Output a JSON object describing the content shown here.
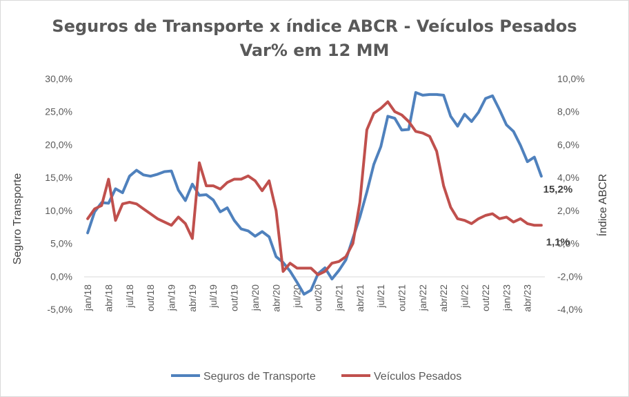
{
  "chart_data": {
    "type": "line",
    "title": "Seguros de Transporte x índice ABCR - Veículos Pesados",
    "subtitle": "Var% em 12 MM",
    "ylabel": "Seguro Transporte",
    "y2label": "Índice ABCR",
    "ylim": [
      -5,
      30
    ],
    "y2lim": [
      -4,
      10
    ],
    "y_ticks": [
      "30,0%",
      "25,0%",
      "20,0%",
      "15,0%",
      "10,0%",
      "5,0%",
      "0,0%",
      "-5,0%"
    ],
    "y2_ticks": [
      "10,0%",
      "8,0%",
      "6,0%",
      "4,0%",
      "2,0%",
      "0,0%",
      "-2,0%",
      "-4,0%"
    ],
    "x_tick_labels": [
      "jan/18",
      "abr/18",
      "jul/18",
      "out/18",
      "jan/19",
      "abr/19",
      "jul/19",
      "out/19",
      "jan/20",
      "abr/20",
      "jul/20",
      "out/20",
      "jan/21",
      "abr/21",
      "jul/21",
      "out/21",
      "jan/22",
      "abr/22",
      "jul/22",
      "out/22",
      "jan/23",
      "abr/23"
    ],
    "x": [
      "jan/18",
      "fev/18",
      "mar/18",
      "abr/18",
      "mai/18",
      "jun/18",
      "jul/18",
      "ago/18",
      "set/18",
      "out/18",
      "nov/18",
      "dez/18",
      "jan/19",
      "fev/19",
      "mar/19",
      "abr/19",
      "mai/19",
      "jun/19",
      "jul/19",
      "ago/19",
      "set/19",
      "out/19",
      "nov/19",
      "dez/19",
      "jan/20",
      "fev/20",
      "mar/20",
      "abr/20",
      "mai/20",
      "jun/20",
      "jul/20",
      "ago/20",
      "set/20",
      "out/20",
      "nov/20",
      "dez/20",
      "jan/21",
      "fev/21",
      "mar/21",
      "abr/21",
      "mai/21",
      "jun/21",
      "jul/21",
      "ago/21",
      "set/21",
      "out/21",
      "nov/21",
      "dez/21",
      "jan/22",
      "fev/22",
      "mar/22",
      "abr/22",
      "mai/22",
      "jun/22",
      "jul/22",
      "ago/22",
      "set/22",
      "out/22",
      "nov/22",
      "dez/22",
      "jan/23",
      "fev/23",
      "mar/23",
      "abr/23",
      "mai/23",
      "jun/23"
    ],
    "series": [
      {
        "name": "Seguros de Transporte",
        "axis": "left",
        "color": "#4f81bd",
        "values": [
          6.6,
          9.8,
          11.2,
          11.1,
          13.3,
          12.7,
          15.2,
          16.1,
          15.4,
          15.2,
          15.5,
          15.9,
          16.0,
          13.1,
          11.5,
          14.0,
          12.3,
          12.4,
          11.6,
          9.8,
          10.4,
          8.5,
          7.2,
          6.9,
          6.1,
          6.8,
          6.0,
          3.0,
          2.1,
          0.8,
          -0.9,
          -2.7,
          -2.1,
          0.4,
          1.3,
          -0.4,
          0.9,
          2.5,
          5.8,
          9.0,
          12.8,
          17.0,
          19.7,
          24.3,
          24.0,
          22.2,
          22.3,
          27.9,
          27.5,
          27.6,
          27.6,
          27.5,
          24.3,
          22.8,
          24.6,
          23.5,
          24.9,
          27.0,
          27.4,
          25.3,
          23.0,
          22.0,
          19.9,
          17.4,
          18.1,
          15.2
        ]
      },
      {
        "name": "Veículos Pesados",
        "axis": "right",
        "color": "#c0504d",
        "values": [
          1.5,
          2.1,
          2.3,
          3.9,
          1.4,
          2.4,
          2.5,
          2.4,
          2.1,
          1.8,
          1.5,
          1.3,
          1.1,
          1.6,
          1.2,
          0.3,
          4.9,
          3.5,
          3.5,
          3.3,
          3.7,
          3.9,
          3.9,
          4.1,
          3.8,
          3.2,
          3.8,
          2.0,
          -1.7,
          -1.2,
          -1.5,
          -1.5,
          -1.5,
          -1.9,
          -1.7,
          -1.2,
          -1.1,
          -0.8,
          0.0,
          2.5,
          6.9,
          7.9,
          8.2,
          8.6,
          8.0,
          7.8,
          7.4,
          6.8,
          6.7,
          6.5,
          5.6,
          3.5,
          2.2,
          1.5,
          1.4,
          1.2,
          1.5,
          1.7,
          1.8,
          1.5,
          1.6,
          1.3,
          1.5,
          1.2,
          1.1,
          1.1
        ]
      }
    ],
    "data_labels": [
      {
        "series": "Seguros de Transporte",
        "text": "15,2%"
      },
      {
        "series": "Veículos Pesados",
        "text": "1,1%"
      }
    ],
    "legend": "bottom",
    "grid": false
  }
}
